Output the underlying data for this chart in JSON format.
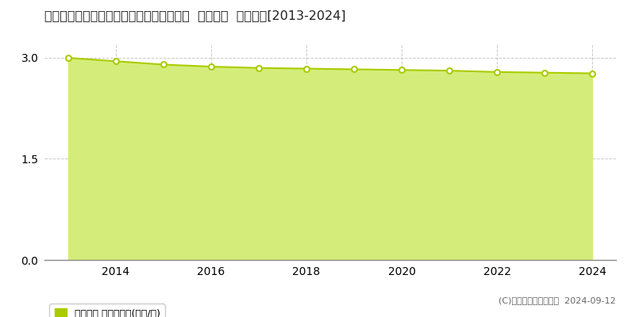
{
  "title": "青森県上北郡七戸町字太田野３５番１５外  地価公示  地価推移[2013-2024]",
  "years": [
    2013,
    2014,
    2015,
    2016,
    2017,
    2018,
    2019,
    2020,
    2021,
    2022,
    2023,
    2024
  ],
  "values": [
    3.0,
    2.95,
    2.9,
    2.87,
    2.85,
    2.84,
    2.83,
    2.82,
    2.81,
    2.79,
    2.78,
    2.77
  ],
  "line_color": "#aacc00",
  "fill_color": "#d4ed7a",
  "marker_face": "#ffffff",
  "marker_edge": "#aacc00",
  "grid_color": "#bbbbbb",
  "background_color": "#ffffff",
  "ylim": [
    0,
    3.2
  ],
  "yticks": [
    0,
    1.5,
    3
  ],
  "xlabel": "",
  "ylabel": "",
  "legend_label": "地価公示 平均坪単価(万円/坪)",
  "legend_color": "#aacc00",
  "copyright_text": "(C)土地価格ドットコム  2024-09-12",
  "title_fontsize": 11.5,
  "tick_fontsize": 10,
  "legend_fontsize": 9,
  "copyright_fontsize": 8
}
